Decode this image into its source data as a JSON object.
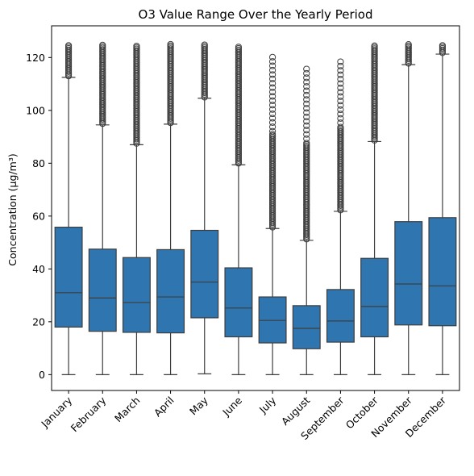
{
  "chart_data": {
    "type": "boxplot",
    "title": "O3 Value Range Over the Yearly Period",
    "xlabel": "",
    "ylabel": "Concentration (µg/m³)",
    "ylim": [
      -6,
      132
    ],
    "yticks": [
      0,
      20,
      40,
      60,
      80,
      100,
      120
    ],
    "grid": false,
    "box_color": "#2f75b0",
    "line_color": "#3d3d3d",
    "categories": [
      "January",
      "February",
      "March",
      "April",
      "May",
      "June",
      "July",
      "August",
      "September",
      "October",
      "November",
      "December"
    ],
    "boxes": [
      {
        "min": 0,
        "q1": 18,
        "median": 31,
        "q3": 55.8,
        "whisker_high": 112.5,
        "outliers": [
          113,
          125
        ]
      },
      {
        "min": 0,
        "q1": 16.4,
        "median": 29,
        "q3": 47.5,
        "whisker_high": 94.5,
        "outliers": [
          95,
          125
        ]
      },
      {
        "min": 0,
        "q1": 16,
        "median": 27.3,
        "q3": 44.3,
        "whisker_high": 87,
        "outliers": [
          87.5,
          124.5
        ]
      },
      {
        "min": 0,
        "q1": 15.8,
        "median": 29.4,
        "q3": 47.3,
        "whisker_high": 94.8,
        "outliers": [
          95.3,
          125
        ]
      },
      {
        "min": 0.3,
        "q1": 21.5,
        "median": 35,
        "q3": 54.6,
        "whisker_high": 104.6,
        "outliers": [
          105,
          125
        ]
      },
      {
        "min": 0,
        "q1": 14.3,
        "median": 25.2,
        "q3": 40.4,
        "whisker_high": 79.4,
        "outliers": [
          80,
          124.5
        ]
      },
      {
        "min": 0,
        "q1": 12,
        "median": 20.5,
        "q3": 29.4,
        "whisker_high": 55.3,
        "outliers": [
          55.8,
          120.3
        ]
      },
      {
        "min": 0,
        "q1": 9.8,
        "median": 17.5,
        "q3": 26.1,
        "whisker_high": 50.8,
        "outliers": [
          51.3,
          116.5
        ]
      },
      {
        "min": 0,
        "q1": 12.3,
        "median": 20.3,
        "q3": 32.2,
        "whisker_high": 61.8,
        "outliers": [
          62.3,
          119
        ]
      },
      {
        "min": 0,
        "q1": 14.3,
        "median": 25.8,
        "q3": 44,
        "whisker_high": 88.2,
        "outliers": [
          88.7,
          124.5
        ]
      },
      {
        "min": 0,
        "q1": 18.8,
        "median": 34.3,
        "q3": 57.9,
        "whisker_high": 117.3,
        "outliers": [
          117.8,
          125
        ]
      },
      {
        "min": 0,
        "q1": 18.5,
        "median": 33.6,
        "q3": 59.4,
        "whisker_high": 121.3,
        "outliers": [
          121.8,
          125
        ]
      }
    ]
  }
}
